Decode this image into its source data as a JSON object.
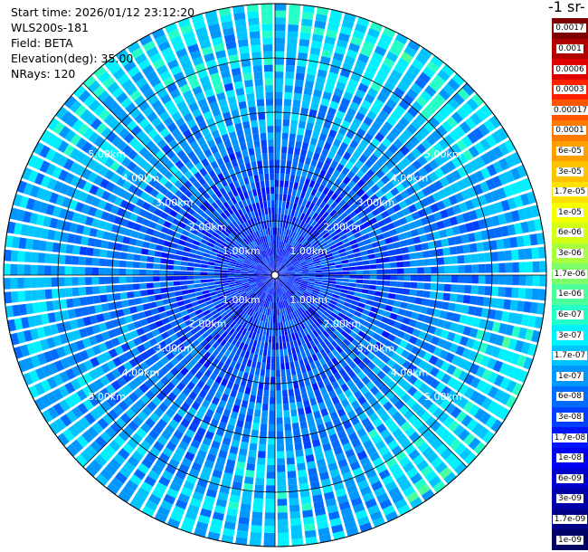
{
  "header": {
    "start_time": "Start time: 2026/01/12 23:12:20",
    "instrument": "WLS200s-181",
    "field": "Field: BETA",
    "elevation": "Elevation(deg): 35.00",
    "nrays": "NRays: 120"
  },
  "colorbar": {
    "title": "-1 sr-",
    "levels": [
      "0.0017",
      "0.001",
      "0.0006",
      "0.0003",
      "0.00017",
      "0.0001",
      "6e-05",
      "3e-05",
      "1.7e-05",
      "1e-05",
      "6e-06",
      "3e-06",
      "1.7e-06",
      "1e-06",
      "6e-07",
      "3e-07",
      "1.7e-07",
      "1e-07",
      "6e-08",
      "3e-08",
      "1.7e-08",
      "1e-08",
      "6e-09",
      "3e-09",
      "1.7e-09",
      "1e-09"
    ],
    "colors": [
      "#7f0000",
      "#b00000",
      "#e00000",
      "#ff2000",
      "#ff5500",
      "#ff7b00",
      "#ff9f00",
      "#ffc200",
      "#ffe100",
      "#f3ff00",
      "#d2ff14",
      "#a8ff40",
      "#7dff6a",
      "#4cff9a",
      "#25ffc8",
      "#00f0ff",
      "#00c4ff",
      "#0098ff",
      "#006cff",
      "#0040ff",
      "#0014ff",
      "#0000f0",
      "#0000cc",
      "#0000a8",
      "#000088",
      "#000066"
    ]
  },
  "chart_data": {
    "type": "heatmap",
    "projection": "polar-ppi",
    "nrays": 120,
    "range_rings_km": [
      1,
      2,
      3,
      4,
      5
    ],
    "range_labels": [
      "1.00km",
      "2.00km",
      "3.00km",
      "4.00km",
      "5.00km"
    ],
    "max_range_km": 5.0,
    "azimuth_lines_deg": [
      0,
      45,
      90,
      135,
      180,
      225,
      270,
      315
    ],
    "backscatter_profile_by_range_km": [
      {
        "range_km": 0.0,
        "value": "1e-08"
      },
      {
        "range_km": 1.0,
        "value": "1.7e-08"
      },
      {
        "range_km": 2.0,
        "value": "3e-08"
      },
      {
        "range_km": 3.0,
        "value": "6e-08"
      },
      {
        "range_km": 4.0,
        "value": "1e-07"
      },
      {
        "range_km": 5.0,
        "value": "1.7e-07"
      }
    ],
    "enhanced_sectors_az_deg": [
      [
        300,
        60
      ],
      [
        100,
        150
      ],
      [
        170,
        190
      ]
    ]
  }
}
